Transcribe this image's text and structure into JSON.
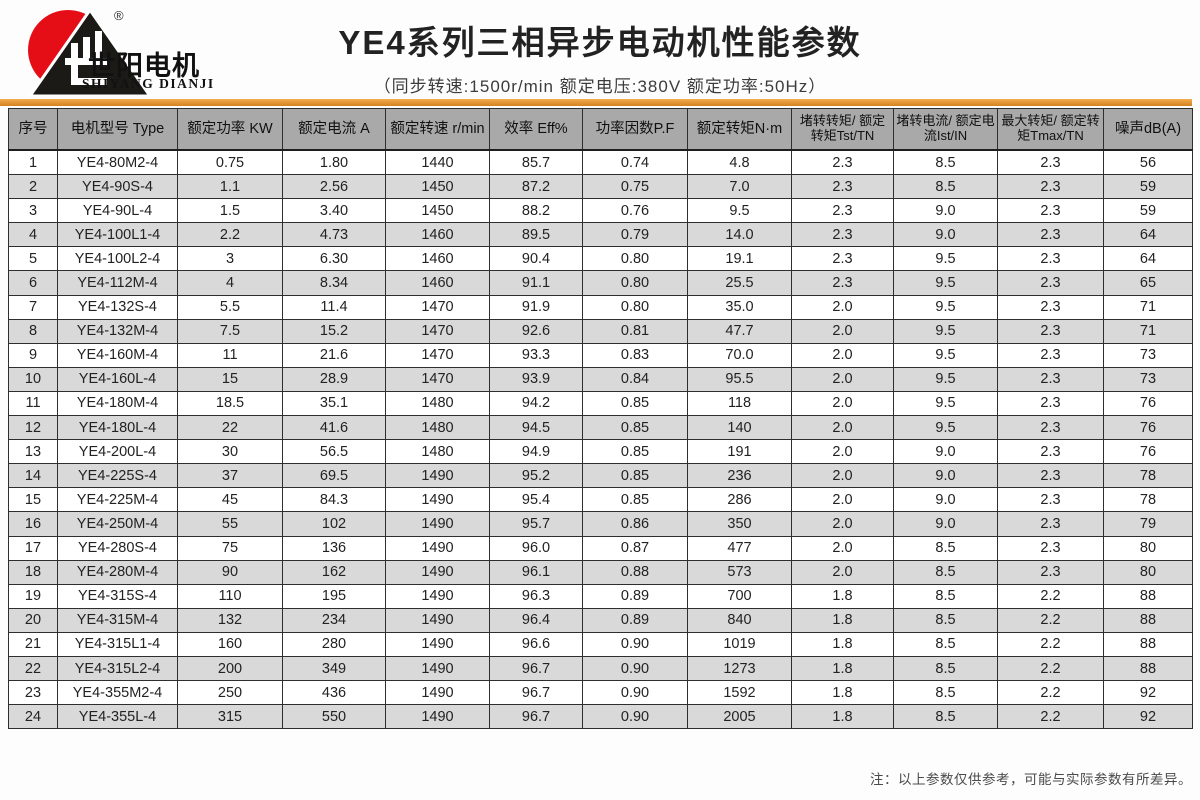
{
  "brand": {
    "logo_text_cn": "世阳电机",
    "logo_text_en": "SHIYANG DIANJI",
    "registered_mark": "®",
    "logo_red": "#e50e16",
    "logo_black": "#1c1a17"
  },
  "header": {
    "title": "YE4系列三相异步电动机性能参数",
    "subtitle": "（同步转速:1500r/min   额定电压:380V   额定功率:50Hz）"
  },
  "accent_bar_color": "#d4821e",
  "table": {
    "headers": [
      "序号",
      "电机型号 Type",
      "额定功率 KW",
      "额定电流 A",
      "额定转速 r/min",
      "效率 Eff%",
      "功率因数P.F",
      "额定转矩N·m",
      "堵转转矩/ 额定转矩Tst/TN",
      "堵转电流/ 额定电流Ist/IN",
      "最大转矩/ 额定转矩Tmax/TN",
      "噪声dB(A)"
    ],
    "rows": [
      [
        "1",
        "YE4-80M2-4",
        "0.75",
        "1.80",
        "1440",
        "85.7",
        "0.74",
        "4.8",
        "2.3",
        "8.5",
        "2.3",
        "56"
      ],
      [
        "2",
        "YE4-90S-4",
        "1.1",
        "2.56",
        "1450",
        "87.2",
        "0.75",
        "7.0",
        "2.3",
        "8.5",
        "2.3",
        "59"
      ],
      [
        "3",
        "YE4-90L-4",
        "1.5",
        "3.40",
        "1450",
        "88.2",
        "0.76",
        "9.5",
        "2.3",
        "9.0",
        "2.3",
        "59"
      ],
      [
        "4",
        "YE4-100L1-4",
        "2.2",
        "4.73",
        "1460",
        "89.5",
        "0.79",
        "14.0",
        "2.3",
        "9.0",
        "2.3",
        "64"
      ],
      [
        "5",
        "YE4-100L2-4",
        "3",
        "6.30",
        "1460",
        "90.4",
        "0.80",
        "19.1",
        "2.3",
        "9.5",
        "2.3",
        "64"
      ],
      [
        "6",
        "YE4-112M-4",
        "4",
        "8.34",
        "1460",
        "91.1",
        "0.80",
        "25.5",
        "2.3",
        "9.5",
        "2.3",
        "65"
      ],
      [
        "7",
        "YE4-132S-4",
        "5.5",
        "11.4",
        "1470",
        "91.9",
        "0.80",
        "35.0",
        "2.0",
        "9.5",
        "2.3",
        "71"
      ],
      [
        "8",
        "YE4-132M-4",
        "7.5",
        "15.2",
        "1470",
        "92.6",
        "0.81",
        "47.7",
        "2.0",
        "9.5",
        "2.3",
        "71"
      ],
      [
        "9",
        "YE4-160M-4",
        "11",
        "21.6",
        "1470",
        "93.3",
        "0.83",
        "70.0",
        "2.0",
        "9.5",
        "2.3",
        "73"
      ],
      [
        "10",
        "YE4-160L-4",
        "15",
        "28.9",
        "1470",
        "93.9",
        "0.84",
        "95.5",
        "2.0",
        "9.5",
        "2.3",
        "73"
      ],
      [
        "11",
        "YE4-180M-4",
        "18.5",
        "35.1",
        "1480",
        "94.2",
        "0.85",
        "118",
        "2.0",
        "9.5",
        "2.3",
        "76"
      ],
      [
        "12",
        "YE4-180L-4",
        "22",
        "41.6",
        "1480",
        "94.5",
        "0.85",
        "140",
        "2.0",
        "9.5",
        "2.3",
        "76"
      ],
      [
        "13",
        "YE4-200L-4",
        "30",
        "56.5",
        "1480",
        "94.9",
        "0.85",
        "191",
        "2.0",
        "9.0",
        "2.3",
        "76"
      ],
      [
        "14",
        "YE4-225S-4",
        "37",
        "69.5",
        "1490",
        "95.2",
        "0.85",
        "236",
        "2.0",
        "9.0",
        "2.3",
        "78"
      ],
      [
        "15",
        "YE4-225M-4",
        "45",
        "84.3",
        "1490",
        "95.4",
        "0.85",
        "286",
        "2.0",
        "9.0",
        "2.3",
        "78"
      ],
      [
        "16",
        "YE4-250M-4",
        "55",
        "102",
        "1490",
        "95.7",
        "0.86",
        "350",
        "2.0",
        "9.0",
        "2.3",
        "79"
      ],
      [
        "17",
        "YE4-280S-4",
        "75",
        "136",
        "1490",
        "96.0",
        "0.87",
        "477",
        "2.0",
        "8.5",
        "2.3",
        "80"
      ],
      [
        "18",
        "YE4-280M-4",
        "90",
        "162",
        "1490",
        "96.1",
        "0.88",
        "573",
        "2.0",
        "8.5",
        "2.3",
        "80"
      ],
      [
        "19",
        "YE4-315S-4",
        "110",
        "195",
        "1490",
        "96.3",
        "0.89",
        "700",
        "1.8",
        "8.5",
        "2.2",
        "88"
      ],
      [
        "20",
        "YE4-315M-4",
        "132",
        "234",
        "1490",
        "96.4",
        "0.89",
        "840",
        "1.8",
        "8.5",
        "2.2",
        "88"
      ],
      [
        "21",
        "YE4-315L1-4",
        "160",
        "280",
        "1490",
        "96.6",
        "0.90",
        "1019",
        "1.8",
        "8.5",
        "2.2",
        "88"
      ],
      [
        "22",
        "YE4-315L2-4",
        "200",
        "349",
        "1490",
        "96.7",
        "0.90",
        "1273",
        "1.8",
        "8.5",
        "2.2",
        "88"
      ],
      [
        "23",
        "YE4-355M2-4",
        "250",
        "436",
        "1490",
        "96.7",
        "0.90",
        "1592",
        "1.8",
        "8.5",
        "2.2",
        "92"
      ],
      [
        "24",
        "YE4-355L-4",
        "315",
        "550",
        "1490",
        "96.7",
        "0.90",
        "2005",
        "1.8",
        "8.5",
        "2.2",
        "92"
      ]
    ]
  },
  "footer": {
    "note": "注：以上参数仅供参考，可能与实际参数有所差异。"
  }
}
